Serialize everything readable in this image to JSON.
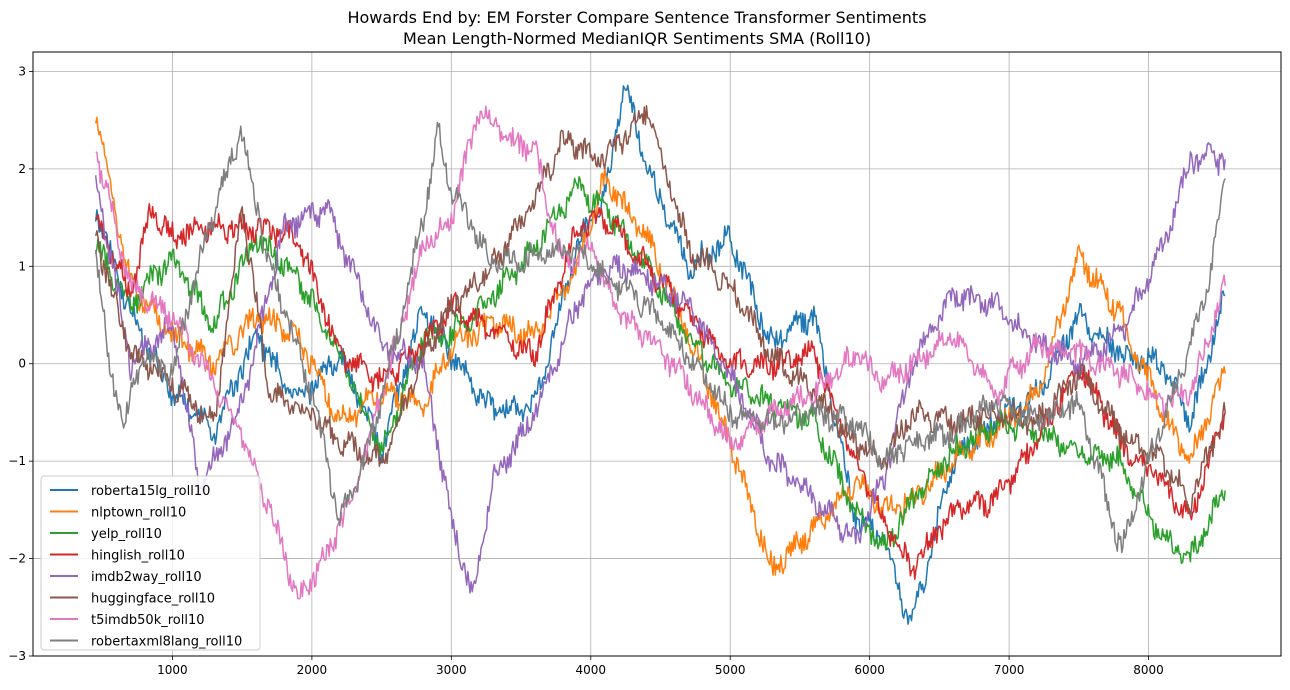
{
  "chart_data": {
    "type": "line",
    "title": "Howards End by: EM Forster Compare Sentence Transformer Sentiments",
    "subtitle": "Mean Length-Normed MedianIQR Sentiments SMA (Roll10)",
    "xlabel": "",
    "ylabel": "",
    "xlim": [
      0,
      8950
    ],
    "ylim": [
      -3,
      3.2
    ],
    "xticks": [
      1000,
      2000,
      3000,
      4000,
      5000,
      6000,
      7000,
      8000
    ],
    "yticks": [
      -3,
      -2,
      -1,
      0,
      1,
      2,
      3
    ],
    "grid": true,
    "legend_position": "lower-left",
    "series": [
      {
        "name": "roberta15lg_roll10",
        "color": "#1f77b4",
        "x": [
          450,
          700,
          1000,
          1300,
          1600,
          1900,
          2200,
          2500,
          2800,
          3000,
          3300,
          3600,
          3900,
          4100,
          4250,
          4400,
          4700,
          5000,
          5300,
          5600,
          5900,
          6100,
          6300,
          6600,
          6900,
          7200,
          7500,
          7800,
          8100,
          8300,
          8550
        ],
        "values": [
          1.6,
          0.5,
          -0.3,
          -0.7,
          0.3,
          -0.4,
          0.1,
          -0.9,
          0.6,
          0.1,
          -0.5,
          -0.4,
          1.2,
          1.7,
          2.9,
          2.0,
          1.0,
          1.3,
          0.2,
          0.5,
          -1.6,
          -1.8,
          -2.7,
          -1.0,
          -0.6,
          -0.3,
          0.5,
          0.1,
          0.0,
          -0.6,
          0.7
        ]
      },
      {
        "name": "nlptown_roll10",
        "color": "#ff7f0e",
        "x": [
          450,
          700,
          1000,
          1300,
          1600,
          1900,
          2200,
          2500,
          2800,
          3000,
          3300,
          3600,
          3900,
          4100,
          4400,
          4700,
          5000,
          5300,
          5600,
          5900,
          6100,
          6300,
          6600,
          6900,
          7200,
          7500,
          7800,
          8100,
          8300,
          8550
        ],
        "values": [
          2.6,
          0.8,
          0.3,
          0.0,
          0.5,
          0.3,
          -0.6,
          -0.3,
          -0.4,
          0.2,
          0.4,
          0.3,
          1.0,
          1.9,
          1.3,
          0.3,
          -0.8,
          -2.1,
          -1.7,
          -1.2,
          -1.5,
          -1.4,
          -1.0,
          -0.7,
          -0.3,
          1.1,
          0.5,
          -0.5,
          -1.0,
          -0.1
        ]
      },
      {
        "name": "yelp_roll10",
        "color": "#2ca02c",
        "x": [
          450,
          700,
          1000,
          1300,
          1600,
          1900,
          2200,
          2500,
          2800,
          3000,
          3300,
          3600,
          3900,
          4100,
          4400,
          4700,
          5000,
          5300,
          5600,
          5900,
          6100,
          6300,
          6600,
          6900,
          7200,
          7500,
          7800,
          8100,
          8300,
          8550
        ],
        "values": [
          1.2,
          0.6,
          1.1,
          0.4,
          1.3,
          0.9,
          0.1,
          -0.9,
          0.3,
          0.3,
          0.7,
          1.2,
          1.8,
          1.6,
          1.0,
          0.3,
          -0.2,
          -0.4,
          -0.6,
          -1.5,
          -1.9,
          -1.4,
          -0.9,
          -0.6,
          -0.7,
          -0.9,
          -1.0,
          -1.8,
          -2.0,
          -1.3
        ]
      },
      {
        "name": "hinglish_roll10",
        "color": "#d62728",
        "x": [
          450,
          700,
          850,
          1000,
          1300,
          1600,
          1900,
          2200,
          2500,
          2800,
          3000,
          3300,
          3600,
          3900,
          4100,
          4400,
          4700,
          5000,
          5300,
          5600,
          5900,
          6100,
          6300,
          6600,
          6900,
          7200,
          7500,
          7800,
          8100,
          8300,
          8550
        ],
        "values": [
          1.5,
          0.7,
          1.6,
          1.3,
          1.4,
          1.4,
          1.3,
          0.1,
          -0.2,
          0.2,
          0.6,
          0.3,
          0.1,
          1.4,
          1.5,
          1.0,
          0.5,
          0.0,
          0.0,
          0.1,
          -1.0,
          -1.6,
          -2.1,
          -1.5,
          -1.4,
          -0.8,
          0.0,
          -0.8,
          -1.2,
          -1.6,
          -0.5
        ]
      },
      {
        "name": "imdb2way_roll10",
        "color": "#9467bd",
        "x": [
          450,
          700,
          1000,
          1200,
          1500,
          1800,
          2100,
          2300,
          2500,
          2800,
          3000,
          3150,
          3300,
          3600,
          3900,
          4100,
          4400,
          4700,
          5000,
          5300,
          5600,
          5900,
          6100,
          6300,
          6600,
          6900,
          7200,
          7500,
          7800,
          8100,
          8300,
          8550
        ],
        "values": [
          1.9,
          0.0,
          0.4,
          -1.3,
          -0.4,
          1.4,
          1.6,
          0.9,
          0.2,
          0.0,
          -1.6,
          -2.4,
          -1.2,
          -0.5,
          0.6,
          1.0,
          0.9,
          0.6,
          -0.1,
          -1.0,
          -1.4,
          -1.8,
          -1.2,
          0.0,
          0.7,
          0.6,
          0.2,
          0.0,
          0.3,
          1.2,
          2.1,
          2.1
        ]
      },
      {
        "name": "huggingface_roll10",
        "color": "#8c564b",
        "x": [
          450,
          700,
          1000,
          1300,
          1500,
          1700,
          2000,
          2200,
          2500,
          2800,
          3000,
          3300,
          3600,
          3800,
          4100,
          4400,
          4700,
          5000,
          5300,
          5600,
          5900,
          6100,
          6300,
          6600,
          6900,
          7200,
          7500,
          7800,
          8100,
          8300,
          8550
        ],
        "values": [
          1.3,
          0.1,
          -0.2,
          -0.6,
          1.6,
          -0.3,
          -0.5,
          -0.8,
          -1.0,
          0.1,
          0.6,
          1.0,
          1.7,
          2.3,
          2.1,
          2.6,
          1.2,
          0.8,
          0.1,
          -0.3,
          -0.8,
          -1.0,
          -0.5,
          -0.6,
          -0.5,
          -0.6,
          -0.1,
          -0.7,
          -1.0,
          -1.4,
          -0.5
        ]
      },
      {
        "name": "t5imdb50k_roll10",
        "color": "#e377c2",
        "x": [
          450,
          700,
          1000,
          1300,
          1500,
          1700,
          1900,
          2100,
          2300,
          2500,
          2800,
          3000,
          3200,
          3400,
          3600,
          3800,
          4000,
          4200,
          4400,
          4700,
          5000,
          5300,
          5600,
          5900,
          6100,
          6300,
          6600,
          6900,
          7200,
          7500,
          7800,
          8100,
          8300,
          8550
        ],
        "values": [
          2.2,
          0.8,
          0.5,
          -0.2,
          -0.7,
          -1.5,
          -2.4,
          -2.0,
          -1.3,
          -0.3,
          1.2,
          1.5,
          2.6,
          2.3,
          2.2,
          1.0,
          1.2,
          0.5,
          0.3,
          -0.2,
          -0.8,
          -0.5,
          -0.3,
          0.1,
          -0.2,
          0.0,
          0.3,
          -0.3,
          0.2,
          0.1,
          -0.1,
          -0.4,
          -0.3,
          0.8
        ]
      },
      {
        "name": "robertaxml8lang_roll10",
        "color": "#7f7f7f",
        "x": [
          450,
          550,
          650,
          800,
          1000,
          1200,
          1490,
          1700,
          2000,
          2200,
          2400,
          2600,
          2800,
          2900,
          3000,
          3300,
          3600,
          3900,
          4100,
          4400,
          4700,
          5000,
          5300,
          5600,
          5900,
          6100,
          6300,
          6600,
          6900,
          7200,
          7500,
          7800,
          8000,
          8200,
          8400,
          8550
        ],
        "values": [
          1.2,
          -0.1,
          -0.6,
          0.1,
          -0.1,
          1.1,
          2.4,
          1.0,
          -0.3,
          -1.6,
          -0.9,
          0.2,
          1.5,
          2.4,
          1.8,
          1.0,
          1.1,
          1.2,
          0.9,
          0.6,
          0.1,
          -0.5,
          -0.6,
          -0.5,
          -0.6,
          -1.0,
          -0.8,
          -0.7,
          -0.4,
          -0.6,
          -0.4,
          -1.9,
          -1.0,
          -0.2,
          0.6,
          1.9
        ]
      }
    ]
  }
}
